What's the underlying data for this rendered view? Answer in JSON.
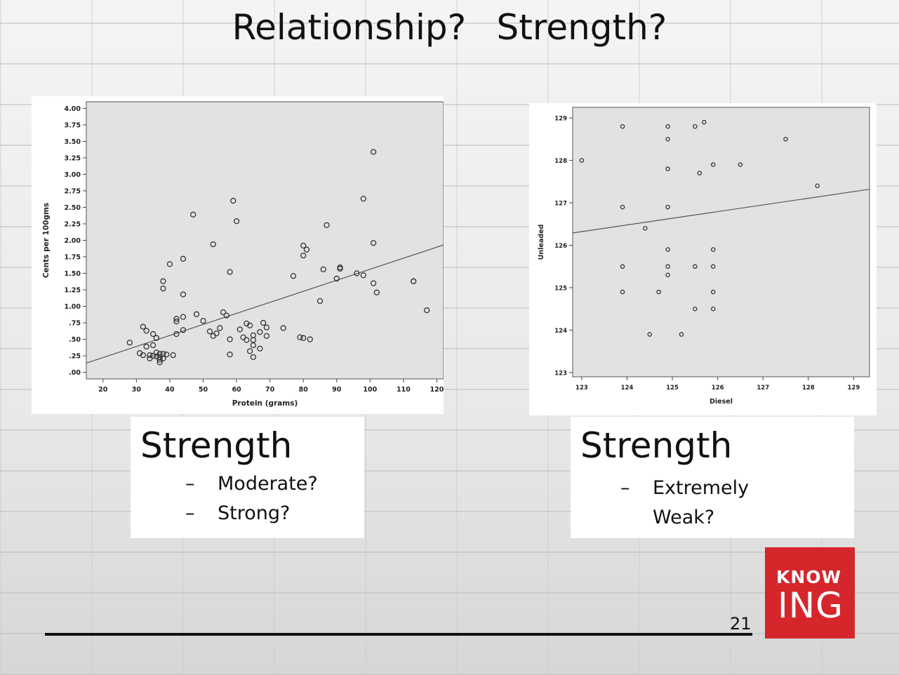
{
  "slide": {
    "title": "Relationship?   Strength?",
    "page_number": "21",
    "logo": {
      "line1": "KNOW",
      "line2": "ING"
    },
    "colors": {
      "logo_bg": "#d5262c",
      "plot_bg": "#e2e2e2"
    }
  },
  "left_box": {
    "heading": "Strength",
    "items": [
      "Moderate?",
      "Strong?"
    ]
  },
  "right_box": {
    "heading": "Strength",
    "items": [
      "Extremely",
      "Weak?"
    ]
  },
  "chart_data": [
    {
      "type": "scatter",
      "title": "",
      "xlabel": "Protein (grams)",
      "ylabel": "Cents per 100gms",
      "xlim": [
        15,
        122
      ],
      "ylim": [
        -0.1,
        4.1
      ],
      "xticks": [
        20,
        30,
        40,
        50,
        60,
        70,
        80,
        90,
        100,
        110,
        120
      ],
      "xtick_labels": [
        "20",
        "30",
        "40",
        "50",
        "60",
        "70",
        "80",
        "90",
        "100",
        "110",
        "120"
      ],
      "yticks": [
        0,
        0.25,
        0.5,
        0.75,
        1.0,
        1.25,
        1.5,
        1.75,
        2.0,
        2.25,
        2.5,
        2.75,
        3.0,
        3.25,
        3.5,
        3.75,
        4.0
      ],
      "ytick_labels": [
        ".00",
        ".25",
        ".50",
        ".75",
        "1.00",
        "1.25",
        "1.50",
        "1.75",
        "2.00",
        "2.25",
        "2.50",
        "2.75",
        "3.00",
        "3.25",
        "3.50",
        "3.75",
        "4.00"
      ],
      "fit_line": {
        "x": [
          15,
          122
        ],
        "y": [
          0.14,
          1.93
        ]
      },
      "points": [
        [
          28,
          0.45
        ],
        [
          31,
          0.29
        ],
        [
          32,
          0.26
        ],
        [
          32,
          0.69
        ],
        [
          33,
          0.63
        ],
        [
          33,
          0.39
        ],
        [
          34,
          0.21
        ],
        [
          34,
          0.26
        ],
        [
          35,
          0.58
        ],
        [
          35,
          0.41
        ],
        [
          35,
          0.25
        ],
        [
          36,
          0.52
        ],
        [
          36,
          0.3
        ],
        [
          36,
          0.24
        ],
        [
          37,
          0.19
        ],
        [
          37,
          0.15
        ],
        [
          37,
          0.23
        ],
        [
          37,
          0.28
        ],
        [
          38,
          0.28
        ],
        [
          38,
          0.21
        ],
        [
          38,
          1.38
        ],
        [
          38,
          1.27
        ],
        [
          39,
          0.27
        ],
        [
          40,
          1.64
        ],
        [
          41,
          0.26
        ],
        [
          42,
          0.81
        ],
        [
          42,
          0.77
        ],
        [
          42,
          0.58
        ],
        [
          44,
          0.84
        ],
        [
          44,
          0.64
        ],
        [
          44,
          1.72
        ],
        [
          44,
          1.18
        ],
        [
          47,
          2.39
        ],
        [
          48,
          0.88
        ],
        [
          50,
          0.78
        ],
        [
          52,
          0.62
        ],
        [
          53,
          1.94
        ],
        [
          53,
          0.55
        ],
        [
          54,
          0.59
        ],
        [
          55,
          0.67
        ],
        [
          56,
          0.91
        ],
        [
          57,
          0.86
        ],
        [
          58,
          1.52
        ],
        [
          58,
          0.5
        ],
        [
          58,
          0.27
        ],
        [
          59,
          2.6
        ],
        [
          60,
          2.29
        ],
        [
          61,
          0.65
        ],
        [
          62,
          0.53
        ],
        [
          63,
          0.74
        ],
        [
          63,
          0.49
        ],
        [
          64,
          0.71
        ],
        [
          64,
          0.32
        ],
        [
          65,
          0.56
        ],
        [
          65,
          0.49
        ],
        [
          65,
          0.41
        ],
        [
          65,
          0.23
        ],
        [
          67,
          0.61
        ],
        [
          67,
          0.36
        ],
        [
          68,
          0.75
        ],
        [
          69,
          0.68
        ],
        [
          69,
          0.55
        ],
        [
          74,
          0.67
        ],
        [
          77,
          1.46
        ],
        [
          79,
          0.53
        ],
        [
          80,
          1.92
        ],
        [
          80,
          1.77
        ],
        [
          80,
          0.52
        ],
        [
          81,
          1.86
        ],
        [
          82,
          0.5
        ],
        [
          85,
          1.08
        ],
        [
          86,
          1.56
        ],
        [
          87,
          2.23
        ],
        [
          90,
          1.42
        ],
        [
          91,
          1.57
        ],
        [
          91,
          1.59
        ],
        [
          96,
          1.5
        ],
        [
          98,
          1.47
        ],
        [
          98,
          2.63
        ],
        [
          101,
          1.96
        ],
        [
          101,
          1.35
        ],
        [
          101,
          3.34
        ],
        [
          102,
          1.21
        ],
        [
          113,
          1.38
        ],
        [
          113,
          1.38
        ],
        [
          117,
          0.94
        ]
      ]
    },
    {
      "type": "scatter",
      "title": "",
      "xlabel": "Diesel",
      "ylabel": "Unleaded",
      "xlim": [
        122.8,
        129.35
      ],
      "ylim": [
        122.9,
        129.25
      ],
      "xticks": [
        123,
        124,
        125,
        126,
        127,
        128,
        129
      ],
      "xtick_labels": [
        "123",
        "124",
        "125",
        "126",
        "127",
        "128",
        "129"
      ],
      "yticks": [
        123,
        124,
        125,
        126,
        127,
        128,
        129
      ],
      "ytick_labels": [
        "123",
        "124",
        "125",
        "126",
        "127",
        "128",
        "129"
      ],
      "fit_line": {
        "x": [
          122.8,
          129.35
        ],
        "y": [
          126.29,
          127.32
        ]
      },
      "points": [
        [
          123.0,
          128.0
        ],
        [
          123.9,
          128.8
        ],
        [
          123.9,
          126.9
        ],
        [
          123.9,
          125.5
        ],
        [
          123.9,
          124.9
        ],
        [
          124.4,
          126.4
        ],
        [
          124.5,
          123.9
        ],
        [
          124.7,
          124.9
        ],
        [
          124.9,
          128.8
        ],
        [
          124.9,
          128.5
        ],
        [
          124.9,
          127.8
        ],
        [
          124.9,
          126.9
        ],
        [
          124.9,
          125.9
        ],
        [
          124.9,
          125.5
        ],
        [
          124.9,
          125.3
        ],
        [
          125.2,
          123.9
        ],
        [
          125.5,
          128.8
        ],
        [
          125.5,
          125.5
        ],
        [
          125.5,
          124.5
        ],
        [
          125.6,
          127.7
        ],
        [
          125.7,
          128.9
        ],
        [
          125.9,
          127.9
        ],
        [
          125.9,
          125.9
        ],
        [
          125.9,
          125.5
        ],
        [
          125.9,
          124.9
        ],
        [
          125.9,
          124.5
        ],
        [
          126.5,
          127.9
        ],
        [
          127.5,
          128.5
        ],
        [
          128.2,
          127.4
        ]
      ]
    }
  ]
}
